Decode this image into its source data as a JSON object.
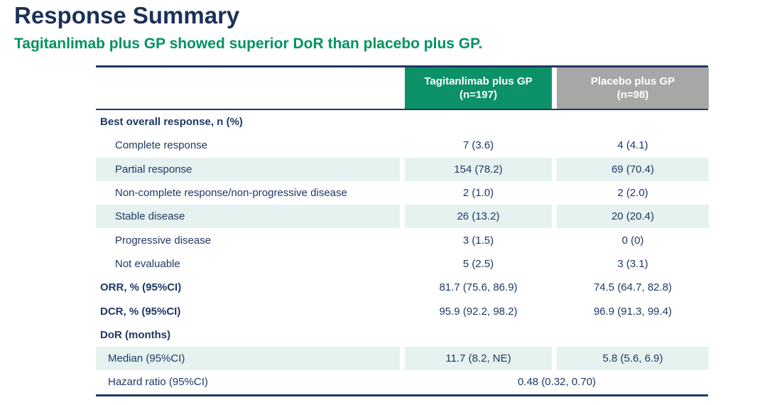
{
  "slide": {
    "title": "Response Summary",
    "subtitle": "Tagitanlimab plus GP showed superior DoR than placebo plus GP."
  },
  "colors": {
    "title_navy": "#1b3159",
    "table_navy": "#1f3864",
    "subtitle_green": "#00935f",
    "header_green": "#0d9168",
    "header_gray": "#a7a7a7",
    "row_shade_teal": "#e5f2f0"
  },
  "table": {
    "header": {
      "col1_line1": "Tagitanlimab plus GP",
      "col1_line2": "(n=197)",
      "col2_line1": "Placebo plus GP",
      "col2_line2": "(n=98)"
    },
    "rows": [
      {
        "label": "Best overall response, n (%)",
        "col1": "",
        "col2": ""
      },
      {
        "label": "Complete response",
        "col1": "7 (3.6)",
        "col2": "4 (4.1)"
      },
      {
        "label": "Partial response",
        "col1": "154 (78.2)",
        "col2": "69 (70.4)"
      },
      {
        "label": "Non-complete response/non-progressive disease",
        "col1": "2 (1.0)",
        "col2": "2 (2.0)"
      },
      {
        "label": "Stable disease",
        "col1": "26 (13.2)",
        "col2": "20 (20.4)"
      },
      {
        "label": "Progressive disease",
        "col1": "3 (1.5)",
        "col2": "0 (0)"
      },
      {
        "label": "Not evaluable",
        "col1": "5 (2.5)",
        "col2": "3 (3.1)"
      },
      {
        "label": "ORR, % (95%CI)",
        "col1": "81.7 (75.6, 86.9)",
        "col2": "74.5 (64.7, 82.8)"
      },
      {
        "label": "DCR, % (95%CI)",
        "col1": "95.9 (92.2, 98.2)",
        "col2": "96.9 (91.3, 99.4)"
      },
      {
        "label": "DoR (months)",
        "col1": "",
        "col2": ""
      },
      {
        "label": "Median (95%CI)",
        "col1": "11.7 (8.2, NE)",
        "col2": "5.8 (5.6, 6.9)"
      },
      {
        "label": "Hazard ratio (95%CI)",
        "span": "0.48 (0.32, 0.70)"
      }
    ]
  }
}
